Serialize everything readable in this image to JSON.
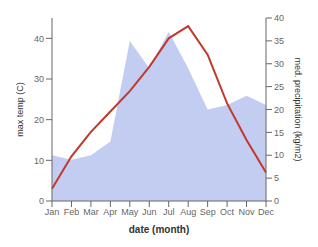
{
  "chart_data": {
    "type": "line",
    "categories": [
      "Jan",
      "Feb",
      "Mar",
      "Apr",
      "May",
      "Jun",
      "Jul",
      "Aug",
      "Sep",
      "Oct",
      "Nov",
      "Dec"
    ],
    "series": [
      {
        "type": "area",
        "axis": "y2",
        "color": "#b8c4f0",
        "values": [
          10,
          9,
          10,
          13,
          35,
          29,
          37,
          29,
          20,
          21,
          23,
          21
        ]
      },
      {
        "type": "line",
        "color": "#c0392b",
        "values": [
          3,
          11,
          17,
          22,
          27,
          33,
          40,
          43,
          36,
          24,
          15,
          7
        ]
      }
    ],
    "xlabel": "date (month)",
    "ylabel": "max temp (C)",
    "y2label": "med. precipitation (kg/m2)",
    "ylim": [
      0,
      45
    ],
    "yticks": [
      0,
      10,
      20,
      30,
      40
    ],
    "y2lim": [
      0,
      40
    ],
    "y2ticks": [
      0,
      5,
      10,
      15,
      20,
      25,
      30,
      35,
      40
    ],
    "grid": false
  }
}
